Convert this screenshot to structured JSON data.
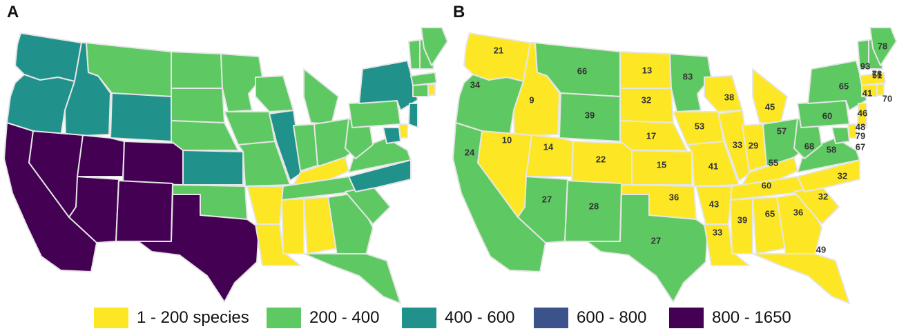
{
  "panels": [
    {
      "letter": "A"
    },
    {
      "letter": "B"
    }
  ],
  "colors": {
    "c1": "#fde725",
    "c2": "#5ec962",
    "c3": "#21918c",
    "c4": "#3b528b",
    "c5": "#440154",
    "border": "#e6e6e6"
  },
  "legend": [
    {
      "label": "1 - 200 species",
      "color": "#fde725"
    },
    {
      "label": "200 - 400",
      "color": "#5ec962"
    },
    {
      "label": "400 - 600",
      "color": "#21918c"
    },
    {
      "label": "600 - 800",
      "color": "#3b528b"
    },
    {
      "label": "800 - 1650",
      "color": "#440154"
    }
  ],
  "mapA_bins": {
    "WA": "c3",
    "OR": "c3",
    "ID": "c3",
    "WY": "c3",
    "KS": "c3",
    "IL": "c3",
    "NY": "c3",
    "NC": "c3",
    "NJ": "c3",
    "MD": "c3",
    "CA": "c5",
    "NV": "c5",
    "UT": "c5",
    "CO": "c5",
    "AZ": "c5",
    "NM": "c5",
    "TX": "c5",
    "AR": "c1",
    "LA": "c1",
    "MS": "c1",
    "AL": "c1",
    "KY": "c1",
    "DE": "c1",
    "RI": "c1",
    "MT": "c2",
    "ND": "c2",
    "SD": "c2",
    "NE": "c2",
    "MN": "c2",
    "IA": "c2",
    "MO": "c2",
    "OK": "c2",
    "WI": "c2",
    "MI": "c2",
    "IN": "c2",
    "OH": "c2",
    "TN": "c2",
    "GA": "c2",
    "FL": "c2",
    "SC": "c2",
    "VA": "c2",
    "WV": "c2",
    "PA": "c2",
    "ME": "c2",
    "NH": "c2",
    "VT": "c2",
    "MA": "c2",
    "CT": "c2"
  },
  "mapB_bins": {
    "WA": "c1",
    "ID": "c1",
    "NV": "c1",
    "UT": "c1",
    "CO": "c1",
    "ND": "c1",
    "SD": "c1",
    "NE": "c1",
    "KS": "c1",
    "OK": "c1",
    "IA": "c1",
    "MO": "c1",
    "AR": "c1",
    "LA": "c1",
    "MS": "c1",
    "AL": "c1",
    "GA": "c1",
    "FL": "c1",
    "SC": "c1",
    "NC": "c1",
    "TN": "c1",
    "KY": "c1",
    "IL": "c1",
    "IN": "c1",
    "WI": "c1",
    "MI": "c1",
    "NJ": "c1",
    "DE": "c1",
    "MA": "c1",
    "CT": "c1",
    "RI": "c1",
    "OR": "c2",
    "CA": "c2",
    "MT": "c2",
    "WY": "c2",
    "AZ": "c2",
    "NM": "c2",
    "TX": "c2",
    "MN": "c2",
    "OH": "c2",
    "WV": "c2",
    "VA": "c2",
    "PA": "c2",
    "NY": "c2",
    "VT": "c2",
    "NH": "c2",
    "ME": "c2",
    "MD": "c2"
  },
  "mapB_counts": {
    "WA": "21",
    "OR": "34",
    "CA": "24",
    "ID": "9",
    "NV": "10",
    "MT": "66",
    "WY": "39",
    "UT": "14",
    "AZ": "27",
    "CO": "22",
    "NM": "28",
    "ND": "13",
    "SD": "32",
    "NE": "17",
    "KS": "15",
    "OK": "36",
    "TX": "27",
    "MN": "83",
    "IA": "53",
    "MO": "41",
    "AR": "43",
    "LA": "33",
    "WI": "38",
    "IL": "33",
    "MI": "45",
    "IN": "29",
    "OH": "57",
    "KY": "55",
    "TN": "60",
    "MS": "39",
    "AL": "65",
    "GA": "36",
    "FL": "49",
    "SC": "32",
    "NC": "32",
    "VA": "58",
    "WV": "68",
    "PA": "60",
    "NY": "65",
    "VT": "93",
    "NH": "78",
    "ME": "78",
    "MA": "51",
    "CT": "41",
    "RI": "70",
    "NJ": "46",
    "DE": "48",
    "MD": "79",
    "DC": "67"
  }
}
